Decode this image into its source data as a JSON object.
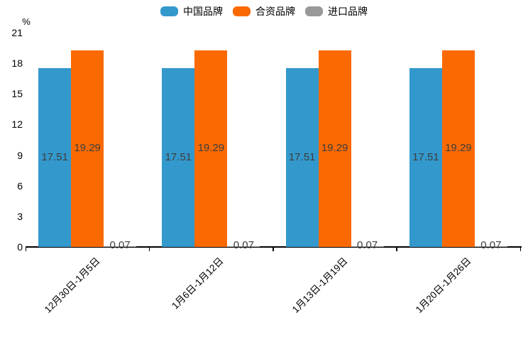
{
  "chart_data": {
    "type": "bar",
    "title": "",
    "categories": [
      "12月30日-1月5日",
      "1月6日-1月12日",
      "1月13日-1月19日",
      "1月20日-1月26日"
    ],
    "series": [
      {
        "name": "中国品牌",
        "color": "#3398cc",
        "values": [
          17.51,
          17.51,
          17.51,
          17.51
        ]
      },
      {
        "name": "合资品牌",
        "color": "#fb6a02",
        "values": [
          19.29,
          19.29,
          19.29,
          19.29
        ]
      },
      {
        "name": "进口品牌",
        "color": "#999999",
        "values": [
          0.07,
          0.07,
          0.07,
          0.07
        ]
      }
    ],
    "xlabel": "",
    "ylabel": "%",
    "ylim": [
      0,
      21
    ],
    "yticks": [
      0,
      3,
      6,
      9,
      12,
      15,
      18,
      21
    ],
    "grid": false,
    "legend_position": "top",
    "value_labels_shown": true,
    "value_label_color": "#3d3d3d",
    "axis_color": "#000000"
  }
}
